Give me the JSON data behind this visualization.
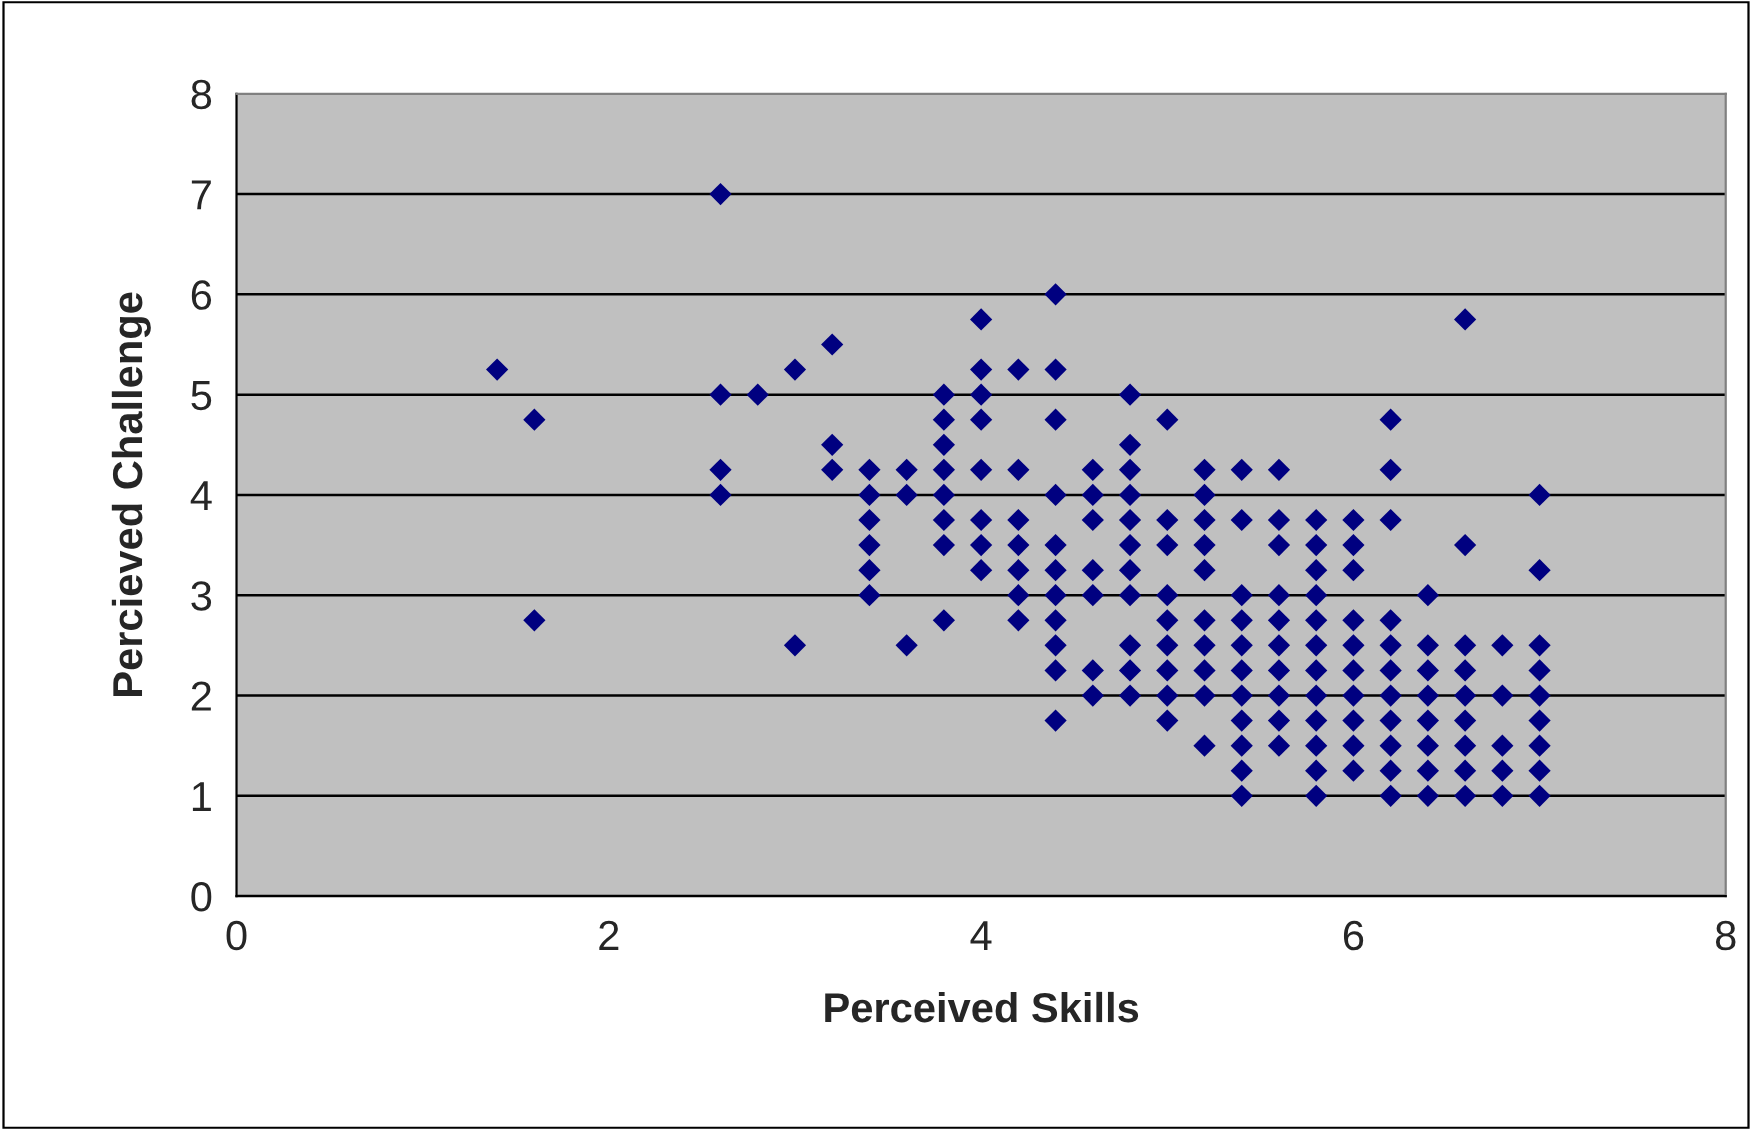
{
  "chart_data": {
    "type": "scatter",
    "xlabel": "Perceived Skills",
    "ylabel": "Percieved Challenge",
    "x": [
      1.4,
      1.6,
      1.6,
      2.6,
      2.6,
      2.6,
      2.6,
      2.8,
      3.0,
      3.0,
      3.2,
      3.2,
      3.2,
      3.4,
      3.4,
      3.4,
      3.4,
      3.4,
      3.4,
      3.6,
      3.6,
      3.6,
      3.8,
      3.8,
      3.8,
      3.8,
      3.8,
      3.8,
      3.8,
      3.8,
      4.0,
      4.0,
      4.0,
      4.0,
      4.0,
      4.0,
      4.0,
      4.0,
      4.2,
      4.2,
      4.2,
      4.2,
      4.2,
      4.2,
      4.2,
      4.4,
      4.4,
      4.4,
      4.4,
      4.4,
      4.4,
      4.4,
      4.4,
      4.4,
      4.4,
      4.4,
      4.6,
      4.6,
      4.6,
      4.6,
      4.6,
      4.6,
      4.6,
      4.8,
      4.8,
      4.8,
      4.8,
      4.8,
      4.8,
      4.8,
      4.8,
      4.8,
      4.8,
      4.8,
      5.0,
      5.0,
      5.0,
      5.0,
      5.0,
      5.0,
      5.0,
      5.0,
      5.0,
      5.2,
      5.2,
      5.2,
      5.2,
      5.2,
      5.2,
      5.2,
      5.2,
      5.2,
      5.2,
      5.4,
      5.4,
      5.4,
      5.4,
      5.4,
      5.4,
      5.4,
      5.4,
      5.4,
      5.4,
      5.4,
      5.6,
      5.6,
      5.6,
      5.6,
      5.6,
      5.6,
      5.6,
      5.6,
      5.6,
      5.6,
      5.8,
      5.8,
      5.8,
      5.8,
      5.8,
      5.8,
      5.8,
      5.8,
      5.8,
      5.8,
      5.8,
      5.8,
      6.0,
      6.0,
      6.0,
      6.0,
      6.0,
      6.0,
      6.0,
      6.0,
      6.0,
      6.0,
      6.2,
      6.2,
      6.2,
      6.2,
      6.2,
      6.2,
      6.2,
      6.2,
      6.2,
      6.2,
      6.2,
      6.4,
      6.4,
      6.4,
      6.4,
      6.4,
      6.4,
      6.4,
      6.4,
      6.6,
      6.6,
      6.6,
      6.6,
      6.6,
      6.6,
      6.6,
      6.6,
      6.6,
      6.8,
      6.8,
      6.8,
      6.8,
      6.8,
      7.0,
      7.0,
      7.0,
      7.0,
      7.0,
      7.0,
      7.0,
      7.0,
      7.0
    ],
    "values": [
      5.25,
      4.75,
      2.75,
      7,
      5,
      4.25,
      4,
      5,
      5.25,
      2.5,
      5.5,
      4.5,
      4.25,
      4.25,
      4,
      3.75,
      3.5,
      3.25,
      3,
      4.25,
      4,
      2.5,
      5,
      4.75,
      4.5,
      4.25,
      4,
      3.75,
      3.5,
      2.75,
      5.75,
      5.25,
      5,
      4.75,
      4.25,
      3.75,
      3.5,
      3.25,
      5.25,
      4.25,
      3.75,
      3.5,
      3.25,
      3,
      2.75,
      6,
      5.25,
      4.75,
      4,
      3.5,
      3.25,
      3,
      2.75,
      2.5,
      2.25,
      1.75,
      4.25,
      4,
      3.75,
      3.25,
      3,
      2.25,
      2,
      5,
      4.5,
      4.25,
      4,
      3.75,
      3.5,
      3.25,
      3,
      2.5,
      2.25,
      2,
      4.75,
      3.75,
      3.5,
      3,
      2.75,
      2.5,
      2.25,
      2,
      1.75,
      4.25,
      4,
      3.75,
      3.5,
      3.25,
      2.75,
      2.5,
      2.25,
      2,
      1.5,
      4.25,
      3.75,
      3,
      2.75,
      2.5,
      2.25,
      2,
      1.75,
      1.5,
      1.25,
      1,
      4.25,
      3.75,
      3.5,
      3,
      2.75,
      2.5,
      2.25,
      2,
      1.75,
      1.5,
      3.75,
      3.5,
      3.25,
      3,
      2.75,
      2.5,
      2.25,
      2,
      1.75,
      1.5,
      1.25,
      1,
      3.75,
      3.5,
      3.25,
      2.75,
      2.5,
      2.25,
      2,
      1.75,
      1.5,
      1.25,
      4.75,
      4.25,
      3.75,
      2.75,
      2.5,
      2.25,
      2,
      1.75,
      1.5,
      1.25,
      1,
      3,
      2.5,
      2.25,
      2,
      1.75,
      1.5,
      1.25,
      1,
      5.75,
      3.5,
      2.5,
      2.25,
      2,
      1.75,
      1.5,
      1.25,
      1,
      2.5,
      2,
      1.5,
      1.25,
      1,
      4,
      3.25,
      2.5,
      2.25,
      2,
      1.75,
      1.5,
      1.25,
      1
    ],
    "color": "#000080",
    "marker": "diamond",
    "xlim": [
      0,
      8
    ],
    "xticks": [
      0,
      2,
      4,
      6,
      8
    ],
    "ylim": [
      0,
      8
    ],
    "yticks": [
      0,
      1,
      2,
      3,
      4,
      5,
      6,
      7,
      8
    ],
    "grid": "y"
  }
}
